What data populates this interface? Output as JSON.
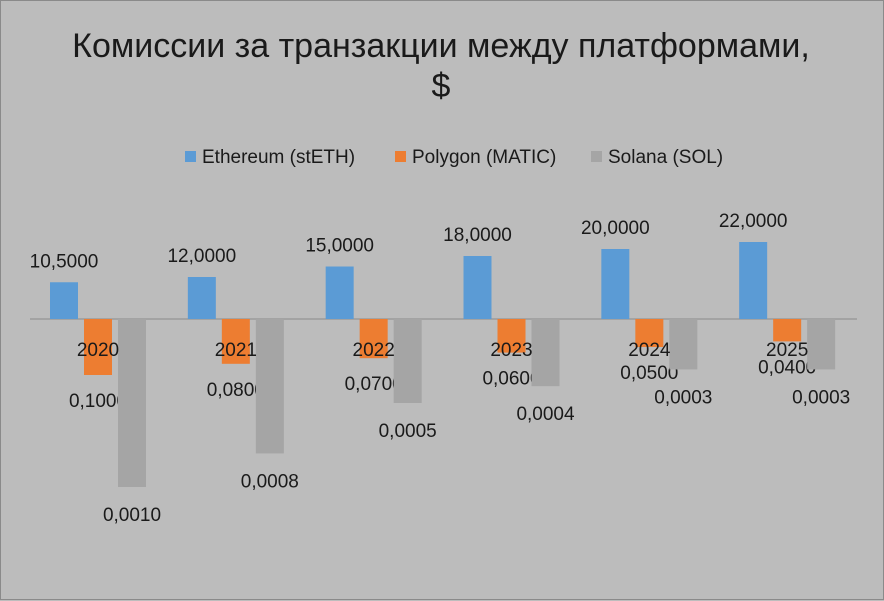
{
  "chart_data": {
    "type": "bar",
    "title_line1": "Комиссии за транзакции между платформами,",
    "title_line2": "$",
    "categories": [
      "2020",
      "2021",
      "2022",
      "2023",
      "2024",
      "2025"
    ],
    "series": [
      {
        "name": "Ethereum (stETH)",
        "color": "#5b9bd5",
        "values": [
          10.5,
          12.0,
          15.0,
          18.0,
          20.0,
          22.0
        ],
        "labels": [
          "10,5000",
          "12,0000",
          "15,0000",
          "18,0000",
          "20,0000",
          "22,0000"
        ]
      },
      {
        "name": "Polygon (MATIC)",
        "color": "#ed7d31",
        "values": [
          0.1,
          0.08,
          0.07,
          0.06,
          0.05,
          0.04
        ],
        "labels": [
          "0,1000",
          "0,0800",
          "0,0700",
          "0,0600",
          "0,0500",
          "0,0400"
        ]
      },
      {
        "name": "Solana (SOL)",
        "color": "#a5a5a5",
        "values": [
          0.001,
          0.0008,
          0.0005,
          0.0004,
          0.0003,
          0.0003
        ],
        "labels": [
          "0,0010",
          "0,0008",
          "0,0005",
          "0,0004",
          "0,0003",
          "0,0003"
        ]
      }
    ],
    "legend_position": "top",
    "grid": false
  }
}
